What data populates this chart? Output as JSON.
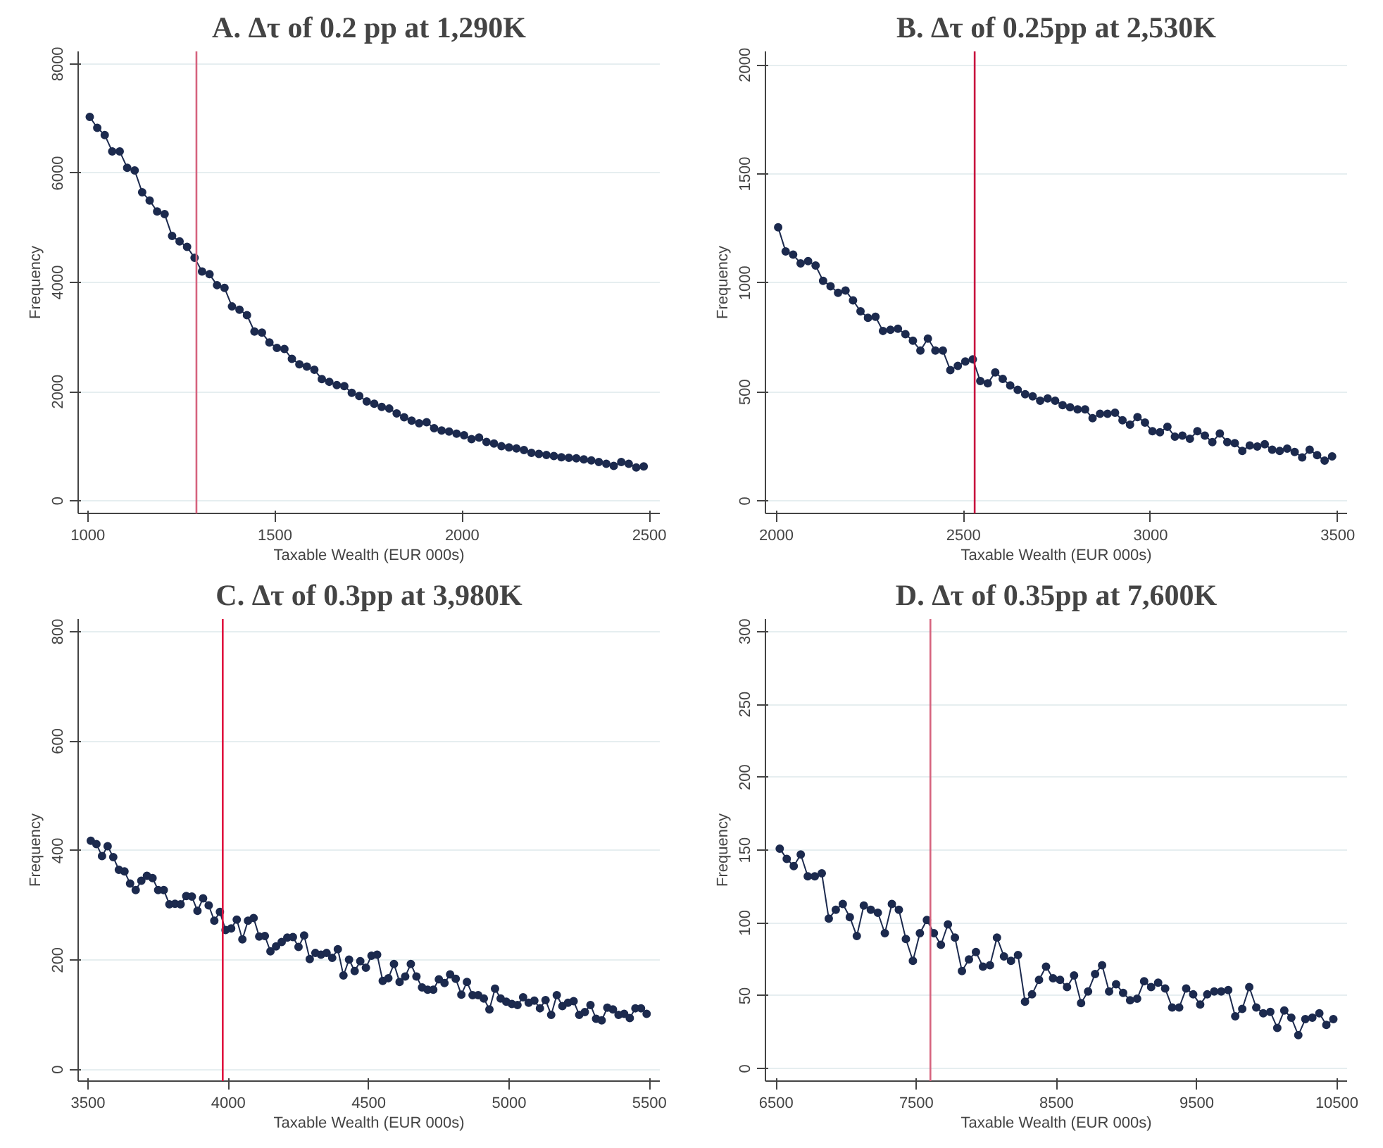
{
  "chart_data": [
    {
      "type": "line",
      "title": "A. Δτ of 0.2 pp at 1,290K",
      "xlabel": "Taxable Wealth (EUR 000s)",
      "ylabel": "Frequency",
      "xlim": [
        974,
        2528
      ],
      "ylim": [
        -230,
        8230
      ],
      "xticks": [
        1000,
        1500,
        2000,
        2500
      ],
      "yticks": [
        0,
        2000,
        4000,
        6000,
        8000
      ],
      "grid": "y",
      "marker": "circle",
      "line_style": "solid",
      "x": [
        1005,
        1025,
        1045,
        1065,
        1085,
        1105,
        1125,
        1145,
        1165,
        1185,
        1205,
        1225,
        1245,
        1265,
        1285,
        1305,
        1325,
        1345,
        1365,
        1385,
        1405,
        1425,
        1445,
        1465,
        1485,
        1505,
        1525,
        1545,
        1565,
        1585,
        1605,
        1625,
        1645,
        1665,
        1685,
        1705,
        1725,
        1745,
        1765,
        1785,
        1805,
        1825,
        1845,
        1865,
        1885,
        1905,
        1925,
        1945,
        1965,
        1985,
        2005,
        2025,
        2045,
        2065,
        2085,
        2105,
        2125,
        2145,
        2165,
        2185,
        2205,
        2225,
        2245,
        2265,
        2285,
        2305,
        2325,
        2345,
        2365,
        2385,
        2405,
        2425,
        2445,
        2465,
        2485
      ],
      "series": [
        {
          "color": "#1c2a4e",
          "values": [
            7030,
            6830,
            6700,
            6400,
            6400,
            6100,
            6050,
            5650,
            5500,
            5300,
            5250,
            4850,
            4750,
            4650,
            4450,
            4200,
            4150,
            3950,
            3900,
            3560,
            3500,
            3400,
            3100,
            3080,
            2900,
            2800,
            2780,
            2600,
            2500,
            2460,
            2400,
            2230,
            2180,
            2120,
            2100,
            1980,
            1920,
            1820,
            1780,
            1720,
            1690,
            1600,
            1530,
            1470,
            1420,
            1440,
            1330,
            1290,
            1270,
            1230,
            1200,
            1130,
            1160,
            1080,
            1050,
            1000,
            980,
            960,
            930,
            880,
            860,
            840,
            820,
            800,
            790,
            780,
            760,
            740,
            710,
            680,
            640,
            710,
            680,
            610,
            630
          ]
        }
      ],
      "ref_lines": [
        {
          "axis": "x",
          "value": 1290,
          "color": "#d6637e"
        }
      ]
    },
    {
      "type": "line",
      "title": "B. Δτ of 0.25pp at 2,530K",
      "xlabel": "Taxable Wealth (EUR 000s)",
      "ylabel": "Frequency",
      "xlim": [
        1971,
        3525
      ],
      "ylim": [
        -57,
        2062
      ],
      "xticks": [
        2000,
        2500,
        3000,
        3500
      ],
      "yticks": [
        0,
        500,
        1000,
        1500,
        2000
      ],
      "grid": "y",
      "marker": "circle",
      "line_style": "solid",
      "x": [
        2005,
        2025,
        2045,
        2065,
        2085,
        2105,
        2125,
        2145,
        2165,
        2185,
        2205,
        2225,
        2245,
        2265,
        2285,
        2305,
        2325,
        2345,
        2365,
        2385,
        2405,
        2425,
        2445,
        2465,
        2485,
        2505,
        2525,
        2545,
        2565,
        2585,
        2605,
        2625,
        2645,
        2665,
        2685,
        2705,
        2725,
        2745,
        2765,
        2785,
        2805,
        2825,
        2845,
        2865,
        2885,
        2905,
        2925,
        2945,
        2965,
        2985,
        3005,
        3025,
        3045,
        3065,
        3085,
        3105,
        3125,
        3145,
        3165,
        3185,
        3205,
        3225,
        3245,
        3265,
        3285,
        3305,
        3325,
        3345,
        3365,
        3385,
        3405,
        3425,
        3445,
        3465,
        3485
      ],
      "series": [
        {
          "color": "#1c2a4e",
          "values": [
            1255,
            1145,
            1130,
            1090,
            1100,
            1080,
            1010,
            985,
            955,
            965,
            920,
            870,
            840,
            845,
            780,
            785,
            790,
            765,
            735,
            690,
            745,
            690,
            690,
            600,
            620,
            640,
            650,
            550,
            540,
            590,
            560,
            530,
            510,
            490,
            480,
            460,
            470,
            460,
            440,
            430,
            420,
            420,
            380,
            400,
            400,
            405,
            370,
            350,
            385,
            360,
            320,
            315,
            340,
            295,
            300,
            285,
            320,
            300,
            270,
            310,
            270,
            265,
            230,
            255,
            250,
            260,
            235,
            230,
            240,
            225,
            200,
            235,
            210,
            185,
            205
          ]
        }
      ],
      "ref_lines": [
        {
          "axis": "x",
          "value": 2530,
          "color": "#c8103e"
        }
      ]
    },
    {
      "type": "line",
      "title": "C. Δτ of 0.3pp at 3,980K",
      "xlabel": "Taxable Wealth (EUR 000s)",
      "ylabel": "Frequency",
      "xlim": [
        3465,
        5537
      ],
      "ylim": [
        -21,
        823
      ],
      "xticks": [
        3500,
        4000,
        4500,
        5000,
        5500
      ],
      "yticks": [
        0,
        200,
        400,
        600,
        800
      ],
      "grid": "y",
      "marker": "circle",
      "line_style": "solid",
      "x": [
        3510,
        3530,
        3550,
        3570,
        3590,
        3610,
        3630,
        3650,
        3670,
        3690,
        3710,
        3730,
        3750,
        3770,
        3790,
        3810,
        3830,
        3850,
        3870,
        3890,
        3910,
        3930,
        3950,
        3970,
        3990,
        4010,
        4030,
        4050,
        4070,
        4090,
        4110,
        4130,
        4150,
        4170,
        4190,
        4210,
        4230,
        4250,
        4270,
        4290,
        4310,
        4330,
        4350,
        4370,
        4390,
        4410,
        4430,
        4450,
        4470,
        4490,
        4510,
        4530,
        4550,
        4570,
        4590,
        4610,
        4630,
        4650,
        4670,
        4690,
        4710,
        4730,
        4750,
        4770,
        4790,
        4810,
        4830,
        4850,
        4870,
        4890,
        4910,
        4930,
        4950,
        4970,
        4990,
        5010,
        5030,
        5050,
        5070,
        5090,
        5110,
        5130,
        5150,
        5170,
        5190,
        5210,
        5230,
        5250,
        5270,
        5290,
        5310,
        5330,
        5350,
        5370,
        5390,
        5410,
        5430,
        5450,
        5470,
        5490
      ],
      "series": [
        {
          "color": "#1c2a4e",
          "values": [
            418,
            412,
            390,
            408,
            388,
            365,
            362,
            340,
            328,
            345,
            354,
            350,
            328,
            328,
            302,
            303,
            302,
            317,
            316,
            290,
            313,
            300,
            272,
            288,
            255,
            258,
            274,
            238,
            272,
            277,
            243,
            244,
            216,
            225,
            233,
            241,
            242,
            224,
            245,
            202,
            213,
            210,
            213,
            204,
            220,
            172,
            201,
            180,
            198,
            186,
            208,
            210,
            162,
            167,
            193,
            160,
            170,
            193,
            170,
            150,
            146,
            146,
            165,
            158,
            174,
            166,
            137,
            160,
            136,
            136,
            130,
            110,
            148,
            130,
            124,
            120,
            118,
            132,
            122,
            126,
            112,
            127,
            100,
            136,
            116,
            122,
            125,
            100,
            105,
            118,
            93,
            90,
            113,
            110,
            100,
            102,
            94,
            112,
            112,
            102
          ]
        }
      ],
      "ref_lines": [
        {
          "axis": "x",
          "value": 3980,
          "color": "#e0103e"
        }
      ]
    },
    {
      "type": "line",
      "title": "D. Δτ of 0.35pp at 7,600K",
      "xlabel": "Taxable Wealth (EUR 000s)",
      "ylabel": "Frequency",
      "xlim": [
        6423,
        10573
      ],
      "ylim": [
        -8.5,
        308.5
      ],
      "xticks": [
        6500,
        7500,
        8500,
        9500,
        10500
      ],
      "yticks": [
        0,
        50,
        100,
        150,
        200,
        250,
        300
      ],
      "grid": "y",
      "marker": "circle",
      "line_style": "solid",
      "x": [
        6525,
        6575,
        6625,
        6675,
        6725,
        6775,
        6825,
        6875,
        6925,
        6975,
        7025,
        7075,
        7125,
        7175,
        7225,
        7275,
        7325,
        7375,
        7425,
        7475,
        7525,
        7575,
        7625,
        7675,
        7725,
        7775,
        7825,
        7875,
        7925,
        7975,
        8025,
        8075,
        8125,
        8175,
        8225,
        8275,
        8325,
        8375,
        8425,
        8475,
        8525,
        8575,
        8625,
        8675,
        8725,
        8775,
        8825,
        8875,
        8925,
        8975,
        9025,
        9075,
        9125,
        9175,
        9225,
        9275,
        9325,
        9375,
        9425,
        9475,
        9525,
        9575,
        9625,
        9675,
        9725,
        9775,
        9825,
        9875,
        9925,
        9975,
        10025,
        10075,
        10125,
        10175,
        10225,
        10275,
        10325,
        10375,
        10425,
        10475
      ],
      "series": [
        {
          "color": "#1c2a4e",
          "values": [
            151,
            144,
            139,
            147,
            132,
            132,
            134,
            103,
            109,
            113,
            104,
            91,
            112,
            109,
            107,
            93,
            113,
            109,
            89,
            74,
            93,
            102,
            93,
            85,
            99,
            90,
            67,
            75,
            80,
            70,
            71,
            90,
            77,
            74,
            78,
            46,
            51,
            61,
            70,
            62,
            61,
            56,
            64,
            45,
            53,
            65,
            71,
            53,
            58,
            52,
            47,
            48,
            60,
            56,
            59,
            55,
            42,
            42,
            55,
            51,
            44,
            51,
            53,
            53,
            54,
            36,
            41,
            56,
            42,
            38,
            39,
            28,
            40,
            35,
            23,
            34,
            35,
            38,
            30,
            34
          ]
        }
      ],
      "ref_lines": [
        {
          "axis": "x",
          "value": 7600,
          "color": "#d6637e"
        }
      ]
    }
  ]
}
